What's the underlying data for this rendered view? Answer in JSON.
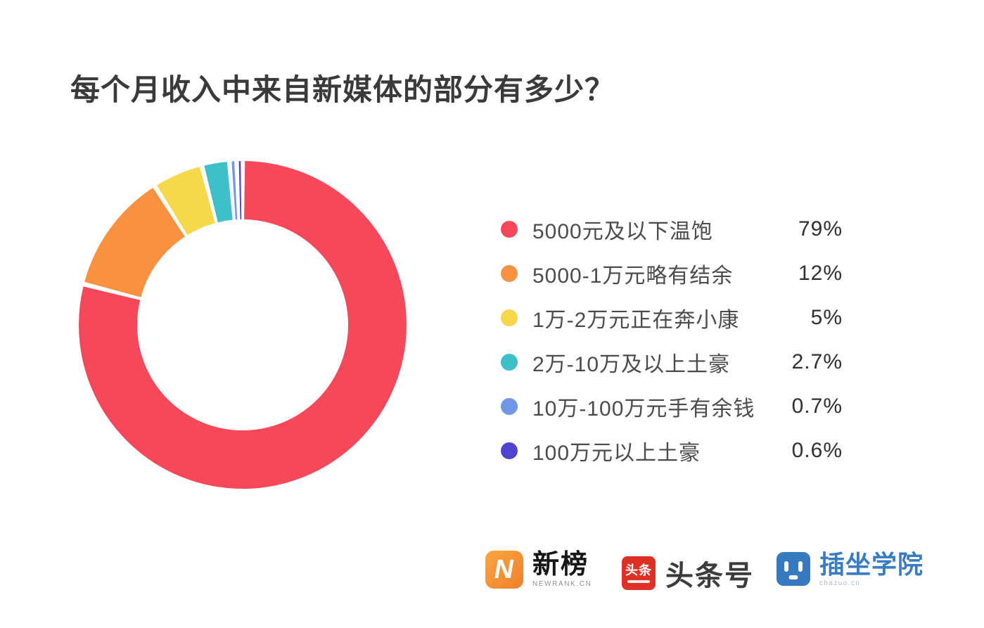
{
  "chart_data": {
    "type": "pie",
    "donut": true,
    "title": "每个月收入中来自新媒体的部分有多少？",
    "start_angle_deg": 90,
    "clockwise": true,
    "legend_position": "right",
    "segments": [
      {
        "label": "5000元及以下温饱",
        "value": 79,
        "pct_label": "79%",
        "color": "#f6485a"
      },
      {
        "label": "5000-1万元略有结余",
        "value": 12,
        "pct_label": "12%",
        "color": "#f89140"
      },
      {
        "label": "1万-2万元正在奔小康",
        "value": 5,
        "pct_label": "5%",
        "color": "#f6d84a"
      },
      {
        "label": "2万-10万及以上土豪",
        "value": 2.7,
        "pct_label": "2.7%",
        "color": "#3fbfc9"
      },
      {
        "label": "10万-100万元手有余钱",
        "value": 0.7,
        "pct_label": "0.7%",
        "color": "#7297e6"
      },
      {
        "label": "100万元以上土豪",
        "value": 0.6,
        "pct_label": "0.6%",
        "color": "#5044ce"
      }
    ]
  },
  "footer": {
    "brands": [
      {
        "name": "新榜",
        "subtext": "NEWRANK.CN",
        "icon_letter": "N",
        "color": "#f08a2e"
      },
      {
        "name": "头条号",
        "icon_text": "头条",
        "color": "#dd3126"
      },
      {
        "name": "插坐学院",
        "subtext": "chazuo.cn",
        "color": "#3579be"
      }
    ]
  }
}
